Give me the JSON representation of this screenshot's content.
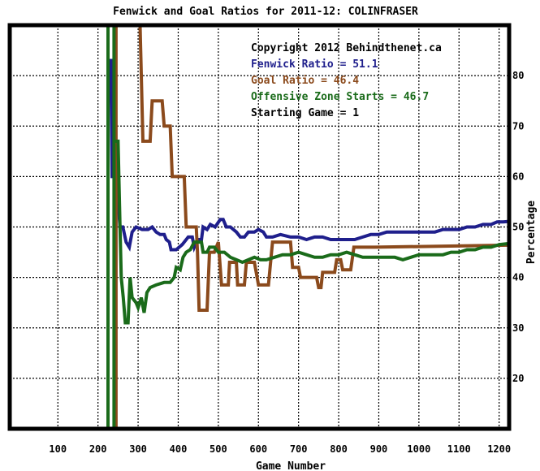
{
  "chart_data": {
    "type": "line",
    "title": "Fenwick and Goal Ratios for 2011-12: COLINFRASER",
    "xlabel": "Game Number",
    "ylabel": "Percentage",
    "xlim": [
      -20,
      1225
    ],
    "ylim": [
      10,
      90
    ],
    "x_ticks": [
      "100",
      "200",
      "300",
      "400",
      "500",
      "600",
      "700",
      "800",
      "900",
      "1000",
      "1100",
      "1200"
    ],
    "y_ticks": [
      "20",
      "30",
      "40",
      "50",
      "60",
      "70",
      "80"
    ],
    "grid": true,
    "legend_placement": "top-right",
    "legend_lines": [
      {
        "text": "Copyright 2012 Behindthenet.ca",
        "color": "#000000"
      },
      {
        "text": "Fenwick Ratio = 51.1",
        "color": "#1f1f8c"
      },
      {
        "text": "Goal Ratio = 46.4",
        "color": "#8b4a1c"
      },
      {
        "text": "Offensive Zone Starts = 46.7",
        "color": "#1a6b1a"
      },
      {
        "text": "Starting Game = 1",
        "color": "#000000"
      }
    ],
    "series": [
      {
        "name": "Fenwick Ratio",
        "color": "#1f1f8c",
        "points": [
          [
            225,
            83
          ],
          [
            232,
            83
          ],
          [
            235,
            60
          ],
          [
            245,
            60
          ],
          [
            255,
            50
          ],
          [
            262,
            50
          ],
          [
            270,
            47
          ],
          [
            278,
            46
          ],
          [
            285,
            49
          ],
          [
            295,
            50
          ],
          [
            310,
            49.5
          ],
          [
            325,
            49.5
          ],
          [
            335,
            50
          ],
          [
            345,
            49
          ],
          [
            355,
            48.5
          ],
          [
            365,
            48.5
          ],
          [
            370,
            47.5
          ],
          [
            378,
            47
          ],
          [
            382,
            45.5
          ],
          [
            395,
            45.5
          ],
          [
            410,
            46.5
          ],
          [
            425,
            48
          ],
          [
            435,
            48
          ],
          [
            440,
            46
          ],
          [
            448,
            47.5
          ],
          [
            458,
            47.5
          ],
          [
            462,
            50
          ],
          [
            472,
            49.5
          ],
          [
            480,
            50.5
          ],
          [
            492,
            50
          ],
          [
            505,
            51.5
          ],
          [
            512,
            51.5
          ],
          [
            520,
            50
          ],
          [
            530,
            50
          ],
          [
            545,
            49
          ],
          [
            555,
            48
          ],
          [
            565,
            48
          ],
          [
            575,
            49
          ],
          [
            590,
            49
          ],
          [
            600,
            49.5
          ],
          [
            612,
            49
          ],
          [
            620,
            48
          ],
          [
            635,
            48
          ],
          [
            655,
            48.5
          ],
          [
            680,
            48
          ],
          [
            700,
            48
          ],
          [
            720,
            47.5
          ],
          [
            740,
            48
          ],
          [
            760,
            48
          ],
          [
            780,
            47.5
          ],
          [
            800,
            47.5
          ],
          [
            820,
            47.5
          ],
          [
            840,
            47.5
          ],
          [
            860,
            48
          ],
          [
            880,
            48.5
          ],
          [
            900,
            48.5
          ],
          [
            920,
            49
          ],
          [
            940,
            49
          ],
          [
            960,
            49
          ],
          [
            980,
            49
          ],
          [
            1000,
            49
          ],
          [
            1020,
            49
          ],
          [
            1040,
            49
          ],
          [
            1060,
            49.5
          ],
          [
            1080,
            49.5
          ],
          [
            1100,
            49.5
          ],
          [
            1120,
            50
          ],
          [
            1140,
            50
          ],
          [
            1160,
            50.5
          ],
          [
            1180,
            50.5
          ],
          [
            1195,
            51
          ],
          [
            1210,
            51
          ],
          [
            1222,
            51.1
          ]
        ]
      },
      {
        "name": "Goal Ratio",
        "color": "#8b4a1c",
        "points": [
          [
            245,
            0
          ],
          [
            245,
            100
          ],
          [
            305,
            100
          ],
          [
            308,
            80
          ],
          [
            312,
            67
          ],
          [
            330,
            67
          ],
          [
            335,
            75
          ],
          [
            360,
            75
          ],
          [
            365,
            70
          ],
          [
            380,
            70
          ],
          [
            385,
            60
          ],
          [
            415,
            60
          ],
          [
            420,
            50
          ],
          [
            445,
            50
          ],
          [
            448,
            45
          ],
          [
            452,
            33.5
          ],
          [
            472,
            33.5
          ],
          [
            478,
            45
          ],
          [
            490,
            45
          ],
          [
            500,
            47
          ],
          [
            508,
            38.5
          ],
          [
            525,
            38.5
          ],
          [
            528,
            43
          ],
          [
            545,
            43
          ],
          [
            548,
            38.5
          ],
          [
            565,
            38.5
          ],
          [
            570,
            43
          ],
          [
            590,
            43
          ],
          [
            600,
            38.5
          ],
          [
            625,
            38.5
          ],
          [
            635,
            47
          ],
          [
            680,
            47
          ],
          [
            685,
            42
          ],
          [
            700,
            42
          ],
          [
            705,
            40
          ],
          [
            715,
            40
          ],
          [
            725,
            40
          ],
          [
            745,
            40
          ],
          [
            750,
            38
          ],
          [
            756,
            38
          ],
          [
            760,
            41
          ],
          [
            790,
            41
          ],
          [
            795,
            43.5
          ],
          [
            805,
            43.5
          ],
          [
            810,
            41.5
          ],
          [
            830,
            41.5
          ],
          [
            838,
            46
          ],
          [
            842,
            46
          ],
          [
            850,
            46
          ],
          [
            885,
            46
          ],
          [
            890,
            46
          ],
          [
            1222,
            46.4
          ]
        ]
      },
      {
        "name": "Offensive Zone Starts",
        "color": "#1a6b1a",
        "points": [
          [
            225,
            0
          ],
          [
            225,
            100
          ],
          [
            240,
            100
          ],
          [
            240,
            0
          ],
          [
            240,
            67
          ],
          [
            250,
            67
          ],
          [
            255,
            50
          ],
          [
            258,
            40
          ],
          [
            263,
            36
          ],
          [
            268,
            31
          ],
          [
            275,
            31
          ],
          [
            280,
            40
          ],
          [
            285,
            36
          ],
          [
            295,
            35
          ],
          [
            300,
            34
          ],
          [
            308,
            36
          ],
          [
            315,
            33
          ],
          [
            322,
            37
          ],
          [
            330,
            38
          ],
          [
            345,
            38.5
          ],
          [
            365,
            39
          ],
          [
            380,
            39
          ],
          [
            390,
            40
          ],
          [
            395,
            42
          ],
          [
            405,
            41.5
          ],
          [
            412,
            44
          ],
          [
            420,
            45
          ],
          [
            430,
            45.5
          ],
          [
            440,
            47
          ],
          [
            458,
            47
          ],
          [
            462,
            45
          ],
          [
            472,
            45
          ],
          [
            478,
            46
          ],
          [
            490,
            46
          ],
          [
            500,
            45
          ],
          [
            515,
            45
          ],
          [
            530,
            44
          ],
          [
            545,
            43.5
          ],
          [
            560,
            43
          ],
          [
            575,
            43.5
          ],
          [
            590,
            44
          ],
          [
            605,
            43.5
          ],
          [
            620,
            43.5
          ],
          [
            640,
            44
          ],
          [
            660,
            44.5
          ],
          [
            680,
            44.5
          ],
          [
            700,
            45
          ],
          [
            720,
            44.5
          ],
          [
            740,
            44
          ],
          [
            760,
            44
          ],
          [
            780,
            44.5
          ],
          [
            800,
            44.5
          ],
          [
            820,
            45
          ],
          [
            840,
            44.5
          ],
          [
            860,
            44
          ],
          [
            880,
            44
          ],
          [
            900,
            44
          ],
          [
            920,
            44
          ],
          [
            940,
            44
          ],
          [
            960,
            43.5
          ],
          [
            980,
            44
          ],
          [
            1000,
            44.5
          ],
          [
            1020,
            44.5
          ],
          [
            1040,
            44.5
          ],
          [
            1060,
            44.5
          ],
          [
            1080,
            45
          ],
          [
            1100,
            45
          ],
          [
            1120,
            45.5
          ],
          [
            1140,
            45.5
          ],
          [
            1160,
            46
          ],
          [
            1180,
            46
          ],
          [
            1200,
            46.5
          ],
          [
            1222,
            46.7
          ]
        ]
      }
    ]
  }
}
